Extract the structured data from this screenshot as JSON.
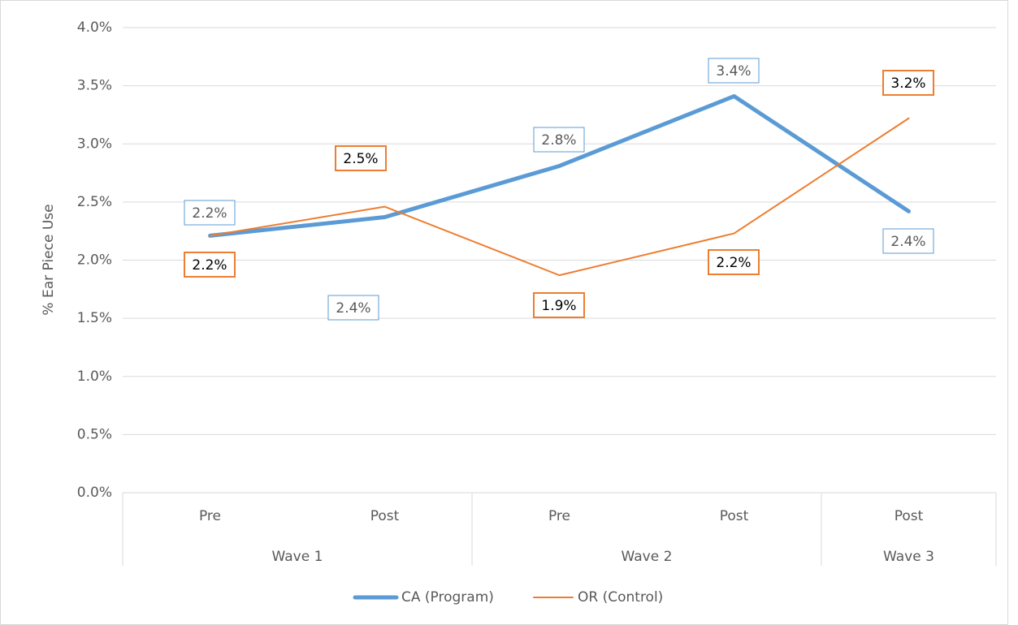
{
  "chart_data": {
    "type": "line",
    "y_label": "% Ear Piece Use",
    "categories": [
      "Pre",
      "Post",
      "Pre",
      "Post",
      "Post"
    ],
    "category_groups": [
      "Wave 1",
      "Wave 1",
      "Wave 2",
      "Wave 2",
      "Wave 3"
    ],
    "series": [
      {
        "name": "CA (Program)",
        "color": "#5b9bd5",
        "values": [
          2.21,
          2.37,
          2.81,
          3.41,
          2.42
        ],
        "value_labels": [
          "2.2%",
          "2.4%",
          "2.8%",
          "3.4%",
          "2.4%"
        ]
      },
      {
        "name": "OR (Control)",
        "color": "#ed7d31",
        "values": [
          2.21,
          2.46,
          1.87,
          2.23,
          3.22
        ],
        "value_labels": [
          "2.2%",
          "2.5%",
          "1.9%",
          "2.2%",
          "3.2%"
        ]
      }
    ],
    "ylim": [
      0,
      4
    ],
    "yticks": [
      {
        "value": 0,
        "label": "0.0%"
      },
      {
        "value": 0.5,
        "label": "0.5%"
      },
      {
        "value": 1,
        "label": "1.0%"
      },
      {
        "value": 1.5,
        "label": "1.5%"
      },
      {
        "value": 2,
        "label": "2.0%"
      },
      {
        "value": 2.5,
        "label": "2.5%"
      },
      {
        "value": 3,
        "label": "3.0%"
      },
      {
        "value": 3.5,
        "label": "3.5%"
      },
      {
        "value": 4,
        "label": "4.0%"
      }
    ],
    "grid": true,
    "legend": "bottom"
  }
}
